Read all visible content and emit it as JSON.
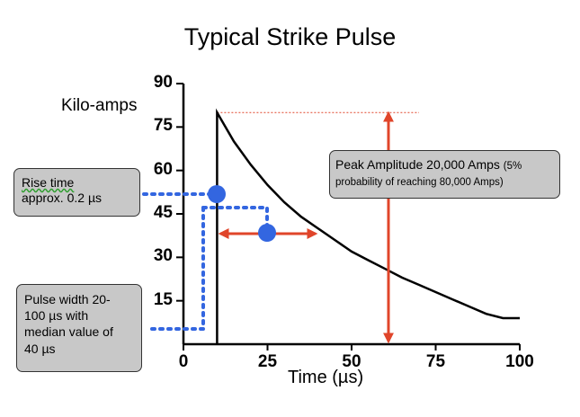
{
  "chart_data": {
    "type": "line",
    "title": "Typical Strike Pulse",
    "ylabel": "Kilo-amps",
    "xlabel": "Time (µs)",
    "xlim": [
      0,
      100
    ],
    "ylim": [
      0,
      90
    ],
    "x_ticks": [
      "0",
      "25",
      "50",
      "75",
      "100"
    ],
    "y_ticks": [
      "15",
      "30",
      "45",
      "60",
      "75",
      "90"
    ],
    "grid": false,
    "series": [
      {
        "x": [
          10,
          10,
          15,
          20,
          25,
          30,
          35,
          40,
          45,
          50,
          55,
          60,
          65,
          70,
          75,
          80,
          85,
          90,
          95,
          100
        ],
        "y": [
          0,
          80,
          70,
          62,
          55,
          49,
          44,
          40,
          36,
          32,
          29,
          26,
          23,
          20.5,
          18,
          15.5,
          13,
          10.5,
          9,
          9
        ]
      }
    ],
    "reference_line": {
      "y": 80,
      "style": "dotted",
      "color": "#e0452a"
    },
    "annotations": {
      "peak_line": "Peak Amplitude 20,000 Amps",
      "peak_small": "(5% probability of reaching 80,000 Amps)",
      "rise_line1": "Rise time",
      "rise_line2": "approx. 0.2 µs",
      "pulse_line1": "Pulse width 20-",
      "pulse_line2": "100 µs with",
      "pulse_line3": "median value of",
      "pulse_line4": "40 µs"
    },
    "colors": {
      "curve": "#000000",
      "arrow": "#e0452a",
      "marker": "#3366e0"
    }
  }
}
